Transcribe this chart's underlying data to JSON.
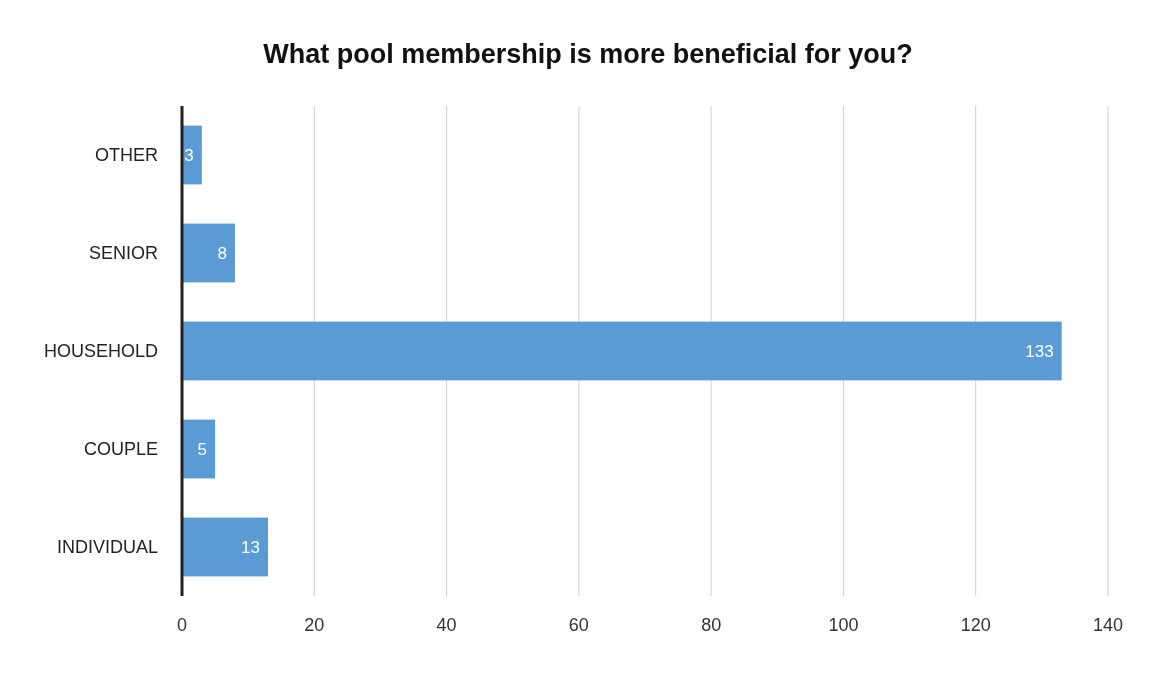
{
  "chart_data": {
    "type": "bar",
    "orientation": "horizontal",
    "title": "What pool membership is more beneficial for you?",
    "categories": [
      "OTHER",
      "SENIOR",
      "HOUSEHOLD",
      "COUPLE",
      "INDIVIDUAL"
    ],
    "values": [
      3,
      8,
      133,
      5,
      13
    ],
    "color": "#5b9bd5",
    "data_labels": true,
    "xlim": [
      0,
      140
    ],
    "xticks": [
      0,
      20,
      40,
      60,
      80,
      100,
      120,
      140
    ],
    "grid": "x"
  }
}
